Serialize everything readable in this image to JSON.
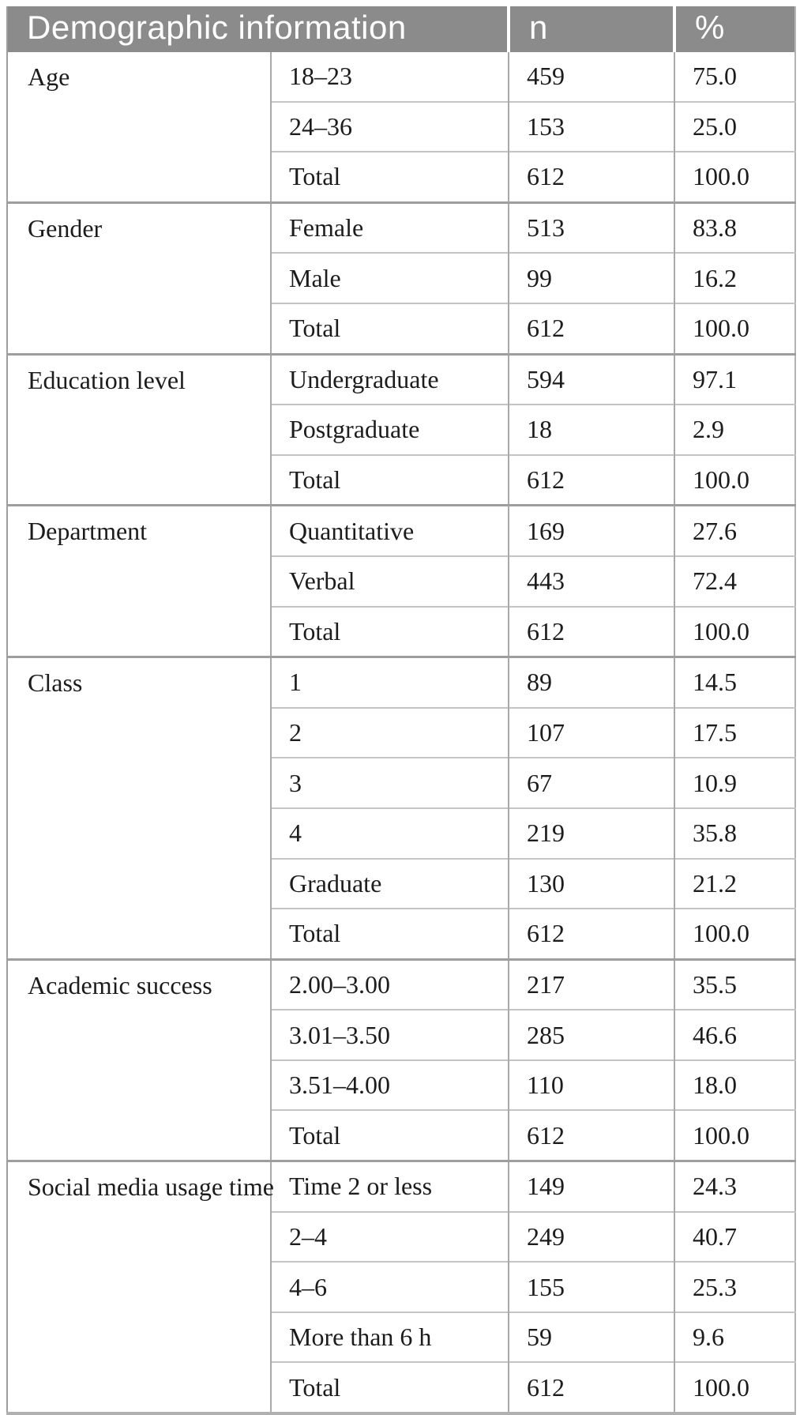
{
  "table": {
    "header": {
      "demographic": "Demographic information",
      "n": "n",
      "percent": "%"
    },
    "groups": [
      {
        "category": "Age",
        "rows": [
          [
            "18–23",
            "459",
            "75.0"
          ],
          [
            "24–36",
            "153",
            "25.0"
          ],
          [
            "Total",
            "612",
            "100.0"
          ]
        ]
      },
      {
        "category": "Gender",
        "rows": [
          [
            "Female",
            "513",
            "83.8"
          ],
          [
            "Male",
            "99",
            "16.2"
          ],
          [
            "Total",
            "612",
            "100.0"
          ]
        ]
      },
      {
        "category": "Education level",
        "rows": [
          [
            "Undergraduate",
            "594",
            "97.1"
          ],
          [
            "Postgraduate",
            "18",
            "2.9"
          ],
          [
            "Total",
            "612",
            "100.0"
          ]
        ]
      },
      {
        "category": "Department",
        "rows": [
          [
            "Quantitative",
            "169",
            "27.6"
          ],
          [
            "Verbal",
            "443",
            "72.4"
          ],
          [
            "Total",
            "612",
            "100.0"
          ]
        ]
      },
      {
        "category": "Class",
        "rows": [
          [
            "1",
            "89",
            "14.5"
          ],
          [
            "2",
            "107",
            "17.5"
          ],
          [
            "3",
            "67",
            "10.9"
          ],
          [
            "4",
            "219",
            "35.8"
          ],
          [
            "Graduate",
            "130",
            "21.2"
          ],
          [
            "Total",
            "612",
            "100.0"
          ]
        ]
      },
      {
        "category": "Academic success",
        "rows": [
          [
            "2.00–3.00",
            "217",
            "35.5"
          ],
          [
            "3.01–3.50",
            "285",
            "46.6"
          ],
          [
            "3.51–4.00",
            "110",
            "18.0"
          ],
          [
            "Total",
            "612",
            "100.0"
          ]
        ]
      },
      {
        "category": "Social media usage time",
        "rows": [
          [
            "Time 2 or less",
            "149",
            "24.3"
          ],
          [
            "2–4",
            "249",
            "40.7"
          ],
          [
            "4–6",
            "155",
            "25.3"
          ],
          [
            "More than 6 h",
            "59",
            "9.6"
          ],
          [
            "Total",
            "612",
            "100.0"
          ]
        ]
      }
    ],
    "colors": {
      "header_bg": "#8b8b8b",
      "header_text": "#ffffff",
      "body_text": "#1c1c1c",
      "border_group": "#9e9e9e",
      "border_row": "#c4c4c4",
      "border_vertical": "#a9a9a9",
      "border_bottom": "#b0b0b0"
    }
  }
}
